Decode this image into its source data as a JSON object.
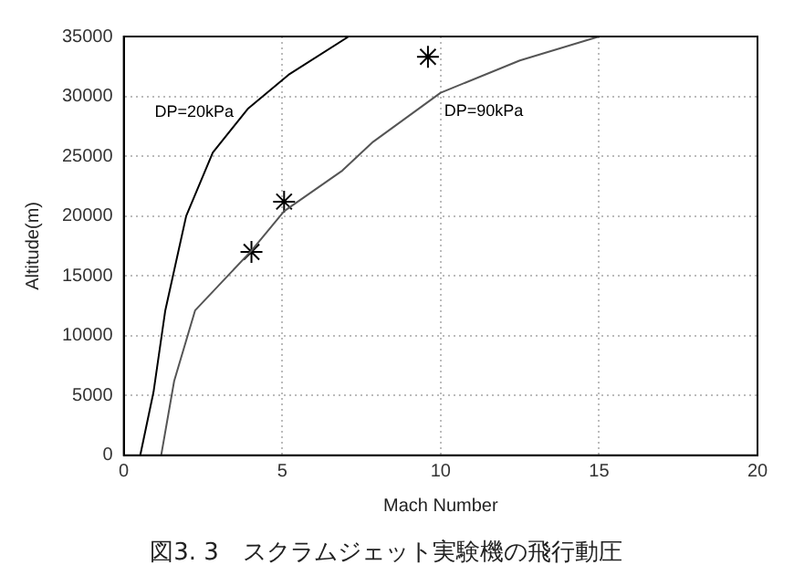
{
  "chart_data": {
    "type": "line",
    "title": "図3. 3　スクラムジェット実験機の飛行動圧",
    "xlabel": "Mach Number",
    "ylabel": "Altitude(m)",
    "xlim": [
      0,
      20
    ],
    "xticks": [
      0,
      5,
      10,
      15,
      20
    ],
    "ylim": [
      0,
      35000
    ],
    "yticks": [
      0,
      5000,
      10000,
      15000,
      20000,
      25000,
      30000,
      35000
    ],
    "grid": true,
    "legend": false,
    "line_style": "solid",
    "series": [
      {
        "color": "#000000",
        "x": [
          0.52,
          0.94,
          1.31,
          1.97,
          2.81,
          3.93,
          5.2,
          7.1
        ],
        "values": [
          0,
          5300,
          12100,
          20000,
          25300,
          29000,
          31800,
          35000
        ]
      },
      {
        "color": "#555555",
        "x": [
          1.18,
          1.59,
          2.25,
          4.03,
          5.06,
          6.9,
          7.87,
          10,
          12.5,
          15
        ],
        "values": [
          0,
          6200,
          12100,
          17100,
          20400,
          23800,
          26200,
          30300,
          33000,
          35000
        ]
      },
      {
        "type": "scatter",
        "color": "#000000",
        "marker": "cross",
        "x": [
          4.03,
          5.06,
          9.6
        ],
        "values": [
          17000,
          21200,
          33300
        ]
      }
    ],
    "annotations": [
      {
        "text": "DP=20kPa",
        "x": 3.93,
        "y": 29000
      },
      {
        "text": "DP=90kPa",
        "x": 10,
        "y": 30300
      }
    ]
  }
}
